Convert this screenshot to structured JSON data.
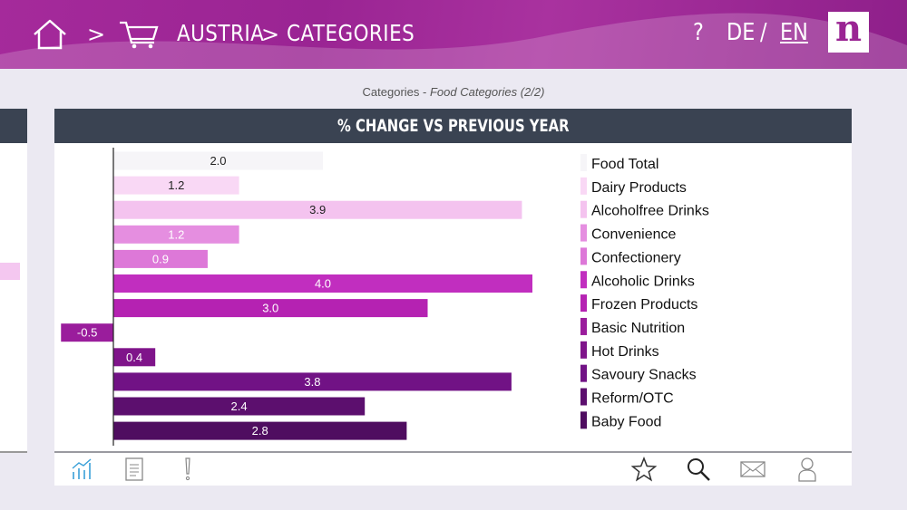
{
  "header": {
    "breadcrumb": [
      "AUSTRIA",
      "CATEGORIES"
    ],
    "separator": ">",
    "help": "?",
    "lang_de": "DE",
    "lang_slash": "/",
    "lang_en": "EN",
    "logo": "n"
  },
  "subtitle": {
    "section": "Categories",
    "dash": " - ",
    "page": "Food Categories (2/2)"
  },
  "card": {
    "title": "% CHANGE VS PREVIOUS YEAR"
  },
  "toolbar": {
    "left_icons": [
      "chart-icon",
      "document-icon",
      "alert-icon"
    ],
    "right_icons": [
      "star-icon",
      "search-icon",
      "mail-icon",
      "user-icon"
    ]
  },
  "colors": {
    "header_bg": "#9a2493",
    "card_header_bg": "#3a4352",
    "active_icon": "#3aa0d8"
  },
  "chart_data": {
    "type": "bar",
    "orientation": "horizontal",
    "title": "% CHANGE VS PREVIOUS YEAR",
    "categories": [
      "Food Total",
      "Dairy Products",
      "Alcoholfree Drinks",
      "Convenience",
      "Confectionery",
      "Alcoholic Drinks",
      "Frozen Products",
      "Basic Nutrition",
      "Hot Drinks",
      "Savoury Snacks",
      "Reform/OTC",
      "Baby Food"
    ],
    "values": [
      2.0,
      1.2,
      3.9,
      1.2,
      0.9,
      4.0,
      3.0,
      -0.5,
      0.4,
      3.8,
      2.4,
      2.8
    ],
    "value_labels": [
      "2.0",
      "1.2",
      "3.9",
      "1.2",
      "0.9",
      "4.0",
      "3.0",
      "-0.5",
      "0.4",
      "3.8",
      "2.4",
      "2.8"
    ],
    "colors": [
      "#f6f5f8",
      "#f9d8f5",
      "#f4c3ef",
      "#e58ee0",
      "#dd78d8",
      "#c12ebf",
      "#b522b2",
      "#9a1d9c",
      "#7f148a",
      "#711285",
      "#5c0f6e",
      "#4f0d60"
    ],
    "label_colors": [
      "#222222",
      "#222222",
      "#222222",
      "#ffffff",
      "#ffffff",
      "#ffffff",
      "#ffffff",
      "#ffffff",
      "#ffffff",
      "#ffffff",
      "#ffffff",
      "#ffffff"
    ],
    "legend_position": "right",
    "grid": false
  }
}
